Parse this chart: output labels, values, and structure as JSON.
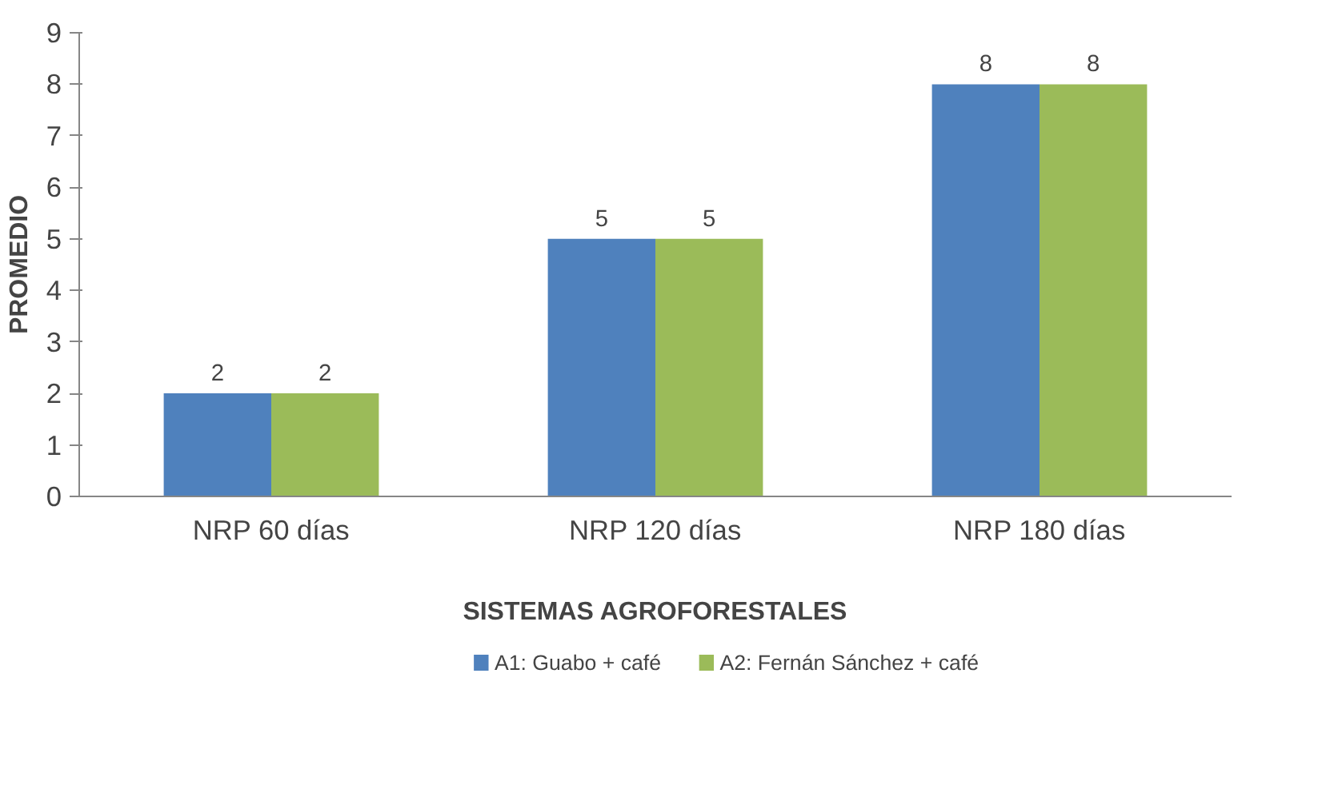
{
  "chart_data": {
    "type": "bar",
    "xlabel": "SISTEMAS AGROFORESTALES",
    "ylabel": "PROMEDIO",
    "categories": [
      "NRP 60 días",
      "NRP 120 días",
      "NRP 180 días"
    ],
    "series": [
      {
        "name": "A1: Guabo + café",
        "color": "#4f81bd",
        "values": [
          2,
          5,
          8
        ]
      },
      {
        "name": "A2: Fernán Sánchez + café",
        "color": "#9bbb59",
        "values": [
          2,
          5,
          8
        ]
      }
    ],
    "ylim": [
      0,
      9
    ],
    "yticks": [
      0,
      1,
      2,
      3,
      4,
      5,
      6,
      7,
      8,
      9
    ],
    "grid": false,
    "legend": "bottom",
    "data_labels": true
  }
}
